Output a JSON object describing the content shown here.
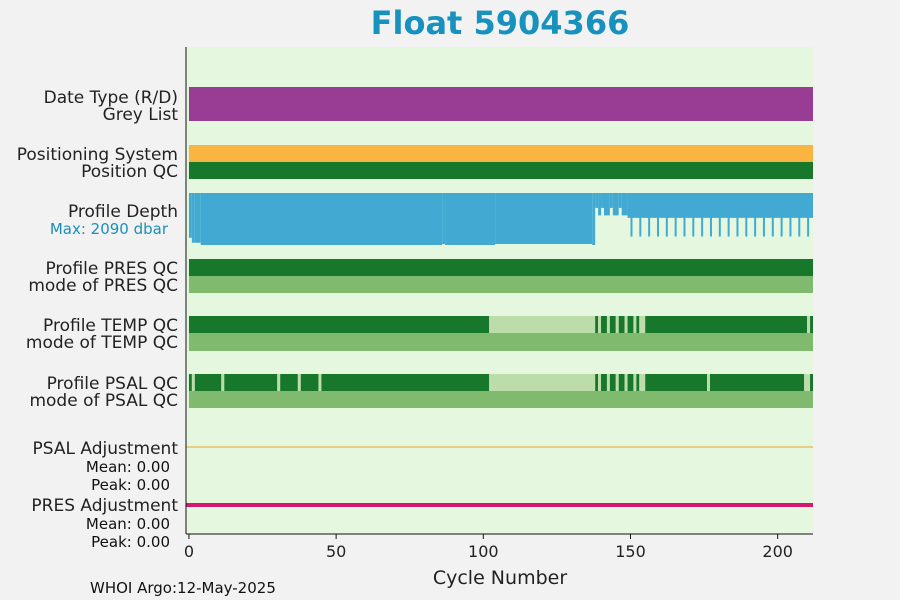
{
  "title": "Float 5904366",
  "footer": "WHOI Argo:12-May-2025",
  "colors": {
    "plot_bg": "#e5f8df",
    "purple": "#983c94",
    "orange": "#f9b442",
    "dark_green": "#17782c",
    "mid_green": "#7fba6f",
    "light_green": "#bcdcaa",
    "depth_blue": "#42aad2",
    "psal_adj_line": "#e8b64a",
    "pres_adj_line": "#d8166e",
    "title": "#1791bd"
  },
  "chart_data": {
    "type": "bar",
    "xlabel": "Cycle Number",
    "xlim": [
      -1,
      212
    ],
    "xticks": [
      "0",
      "50",
      "100",
      "150",
      "200"
    ],
    "grid": false,
    "rows": [
      {
        "label": "Date Type (R/D)",
        "color": "#983c94",
        "segments": [
          [
            0,
            212
          ]
        ]
      },
      {
        "label": "Grey List",
        "color": "#983c94",
        "segments": [
          [
            0,
            212
          ]
        ]
      },
      {
        "label": "Positioning System",
        "color": "#f9b442",
        "segments": [
          [
            0,
            212
          ]
        ]
      },
      {
        "label": "Position QC",
        "color": "#17782c",
        "segments": [
          [
            0,
            212
          ]
        ]
      },
      {
        "label": "Profile PRES QC",
        "color": "#17782c",
        "segments": [
          [
            0,
            212
          ]
        ]
      },
      {
        "label": "mode of PRES QC",
        "color": "#7fba6f",
        "segments": [
          [
            0,
            212
          ]
        ]
      },
      {
        "label": "Profile TEMP QC",
        "segments": [
          {
            "range": [
              0,
              102
            ],
            "color": "#17782c"
          },
          {
            "range": [
              102,
              138
            ],
            "color": "#bcdcaa"
          },
          {
            "range": [
              138,
              139
            ],
            "color": "#17782c"
          },
          {
            "range": [
              139,
              140
            ],
            "color": "#bcdcaa"
          },
          {
            "range": [
              140,
              142
            ],
            "color": "#17782c"
          },
          {
            "range": [
              142,
              143
            ],
            "color": "#bcdcaa"
          },
          {
            "range": [
              143,
              145
            ],
            "color": "#17782c"
          },
          {
            "range": [
              145,
              146
            ],
            "color": "#bcdcaa"
          },
          {
            "range": [
              146,
              148
            ],
            "color": "#17782c"
          },
          {
            "range": [
              148,
              149
            ],
            "color": "#bcdcaa"
          },
          {
            "range": [
              149,
              151
            ],
            "color": "#17782c"
          },
          {
            "range": [
              151,
              152
            ],
            "color": "#bcdcaa"
          },
          {
            "range": [
              152,
              153
            ],
            "color": "#17782c"
          },
          {
            "range": [
              153,
              155
            ],
            "color": "#bcdcaa"
          },
          {
            "range": [
              155,
              210
            ],
            "color": "#17782c"
          },
          {
            "range": [
              210,
              211
            ],
            "color": "#bcdcaa"
          },
          {
            "range": [
              211,
              212
            ],
            "color": "#17782c"
          }
        ]
      },
      {
        "label": "mode of TEMP QC",
        "color": "#7fba6f",
        "segments": [
          [
            0,
            212
          ]
        ]
      },
      {
        "label": "Profile PSAL QC",
        "segments": [
          {
            "range": [
              0,
              1
            ],
            "color": "#17782c"
          },
          {
            "range": [
              1,
              2
            ],
            "color": "#bcdcaa"
          },
          {
            "range": [
              2,
              11
            ],
            "color": "#17782c"
          },
          {
            "range": [
              11,
              12
            ],
            "color": "#bcdcaa"
          },
          {
            "range": [
              12,
              30
            ],
            "color": "#17782c"
          },
          {
            "range": [
              30,
              31
            ],
            "color": "#bcdcaa"
          },
          {
            "range": [
              31,
              37
            ],
            "color": "#17782c"
          },
          {
            "range": [
              37,
              38
            ],
            "color": "#bcdcaa"
          },
          {
            "range": [
              38,
              44
            ],
            "color": "#17782c"
          },
          {
            "range": [
              44,
              45
            ],
            "color": "#bcdcaa"
          },
          {
            "range": [
              45,
              102
            ],
            "color": "#17782c"
          },
          {
            "range": [
              102,
              138
            ],
            "color": "#bcdcaa"
          },
          {
            "range": [
              138,
              139
            ],
            "color": "#17782c"
          },
          {
            "range": [
              139,
              140
            ],
            "color": "#bcdcaa"
          },
          {
            "range": [
              140,
              142
            ],
            "color": "#17782c"
          },
          {
            "range": [
              142,
              143
            ],
            "color": "#bcdcaa"
          },
          {
            "range": [
              143,
              145
            ],
            "color": "#17782c"
          },
          {
            "range": [
              145,
              146
            ],
            "color": "#bcdcaa"
          },
          {
            "range": [
              146,
              148
            ],
            "color": "#17782c"
          },
          {
            "range": [
              148,
              149
            ],
            "color": "#bcdcaa"
          },
          {
            "range": [
              149,
              151
            ],
            "color": "#17782c"
          },
          {
            "range": [
              151,
              152
            ],
            "color": "#bcdcaa"
          },
          {
            "range": [
              152,
              153
            ],
            "color": "#17782c"
          },
          {
            "range": [
              153,
              155
            ],
            "color": "#bcdcaa"
          },
          {
            "range": [
              155,
              176
            ],
            "color": "#17782c"
          },
          {
            "range": [
              176,
              177
            ],
            "color": "#bcdcaa"
          },
          {
            "range": [
              177,
              209
            ],
            "color": "#17782c"
          },
          {
            "range": [
              209,
              211
            ],
            "color": "#bcdcaa"
          },
          {
            "range": [
              211,
              212
            ],
            "color": "#17782c"
          }
        ]
      },
      {
        "label": "mode of PSAL QC",
        "color": "#7fba6f",
        "segments": [
          [
            0,
            212
          ]
        ]
      }
    ],
    "profile_depth": {
      "label": "Profile Depth",
      "max_label": "Max: 2090 dbar",
      "max_dbar": 2090,
      "depths": [
        {
          "range": [
            0,
            1
          ],
          "depth": 1800
        },
        {
          "range": [
            1,
            2
          ],
          "depth": 2000
        },
        {
          "range": [
            2,
            4
          ],
          "depth": 2000
        },
        {
          "range": [
            4,
            86
          ],
          "depth": 2090
        },
        {
          "range": [
            86,
            87
          ],
          "depth": 2050
        },
        {
          "range": [
            87,
            104
          ],
          "depth": 2090
        },
        {
          "range": [
            104,
            137
          ],
          "depth": 2050
        },
        {
          "range": [
            137,
            138
          ],
          "depth": 2090
        },
        {
          "range": [
            138,
            139
          ],
          "depth": 600
        },
        {
          "range": [
            139,
            140
          ],
          "depth": 900
        },
        {
          "range": [
            140,
            141
          ],
          "depth": 600
        },
        {
          "range": [
            141,
            143
          ],
          "depth": 900
        },
        {
          "range": [
            143,
            144
          ],
          "depth": 600
        },
        {
          "range": [
            144,
            146
          ],
          "depth": 900
        },
        {
          "range": [
            146,
            147
          ],
          "depth": 600
        },
        {
          "range": [
            147,
            149
          ],
          "depth": 900
        },
        {
          "range": [
            149,
            150
          ],
          "depth": 1000
        },
        {
          "range": [
            150,
            212
          ],
          "depth": 1000
        }
      ],
      "spikes_every": 3,
      "spikes_from": 150,
      "spike_depth": 1750
    },
    "psal_adjustment": {
      "label": "PSAL Adjustment",
      "mean": "Mean: 0.00",
      "peak": "Peak: 0.00"
    },
    "pres_adjustment": {
      "label": "PRES Adjustment",
      "mean": "Mean: 0.00",
      "peak": "Peak: 0.00"
    }
  }
}
